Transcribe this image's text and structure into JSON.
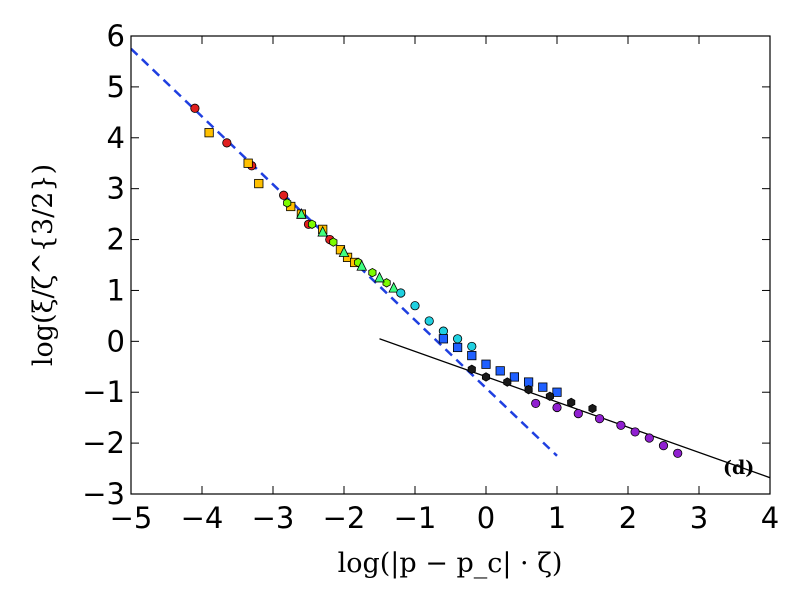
{
  "chart_data": {
    "type": "scatter",
    "title": "",
    "xlabel": "log(|p − p_c| · ζ)",
    "ylabel": "log(ξ/ζ^{3/2})",
    "xlim": [
      -5,
      4
    ],
    "ylim": [
      -3,
      6
    ],
    "x_ticks": [
      "−5",
      "−4",
      "−3",
      "−2",
      "−1",
      "0",
      "1",
      "2",
      "3",
      "4"
    ],
    "y_ticks": [
      "−3",
      "−2",
      "−1",
      "0",
      "1",
      "2",
      "3",
      "4",
      "5",
      "6"
    ],
    "grid": false,
    "legend": "none",
    "annotation": "(d)",
    "reference_lines": [
      {
        "style": "dashed",
        "color": "#1f3fe0",
        "x": [
          -5.0,
          1.0
        ],
        "y": [
          5.75,
          -2.25
        ]
      },
      {
        "style": "solid",
        "color": "#000000",
        "x": [
          -1.5,
          4.0
        ],
        "y": [
          0.05,
          -2.68
        ]
      }
    ],
    "series": [
      {
        "marker": "circle",
        "color": "#e02020",
        "x": [
          -4.1,
          -3.65,
          -3.3,
          -2.85,
          -2.5,
          -2.2
        ],
        "y": [
          4.58,
          3.9,
          3.45,
          2.87,
          2.3,
          2.0
        ]
      },
      {
        "marker": "square",
        "color": "#ffc000",
        "x": [
          -3.9,
          -3.35,
          -3.2,
          -2.75,
          -2.6,
          -2.3,
          -2.05,
          -1.95,
          -1.85
        ],
        "y": [
          4.1,
          3.5,
          3.1,
          2.65,
          2.5,
          2.2,
          1.8,
          1.65,
          1.55
        ]
      },
      {
        "marker": "hexagon",
        "color": "#7cfc00",
        "x": [
          -2.8,
          -2.45,
          -2.15,
          -1.8,
          -1.6,
          -1.4,
          -1.2
        ],
        "y": [
          2.72,
          2.3,
          1.95,
          1.55,
          1.35,
          1.15,
          0.95
        ]
      },
      {
        "marker": "triangle",
        "color": "#40ff80",
        "x": [
          -2.6,
          -2.3,
          -2.0,
          -1.75,
          -1.5,
          -1.3
        ],
        "y": [
          2.5,
          2.15,
          1.75,
          1.48,
          1.25,
          1.05
        ]
      },
      {
        "marker": "circle",
        "color": "#20d0e0",
        "x": [
          -1.2,
          -1.0,
          -0.8,
          -0.6,
          -0.4,
          -0.2
        ],
        "y": [
          0.95,
          0.7,
          0.4,
          0.2,
          0.05,
          -0.1
        ]
      },
      {
        "marker": "square",
        "color": "#2060ff",
        "x": [
          -0.6,
          -0.4,
          -0.2,
          0.0,
          0.2,
          0.4,
          0.6,
          0.8,
          1.0
        ],
        "y": [
          0.05,
          -0.12,
          -0.28,
          -0.45,
          -0.58,
          -0.7,
          -0.8,
          -0.9,
          -1.0
        ]
      },
      {
        "marker": "hexagon",
        "color": "#1a1a1a",
        "x": [
          -0.2,
          0.0,
          0.3,
          0.6,
          0.9,
          1.2,
          1.5
        ],
        "y": [
          -0.55,
          -0.7,
          -0.8,
          -0.95,
          -1.08,
          -1.2,
          -1.32
        ]
      },
      {
        "marker": "circle",
        "color": "#9020d0",
        "x": [
          0.7,
          1.0,
          1.3,
          1.6,
          1.9,
          2.1,
          2.3,
          2.5,
          2.7
        ],
        "y": [
          -1.22,
          -1.3,
          -1.42,
          -1.52,
          -1.65,
          -1.78,
          -1.9,
          -2.05,
          -2.2
        ]
      }
    ]
  }
}
